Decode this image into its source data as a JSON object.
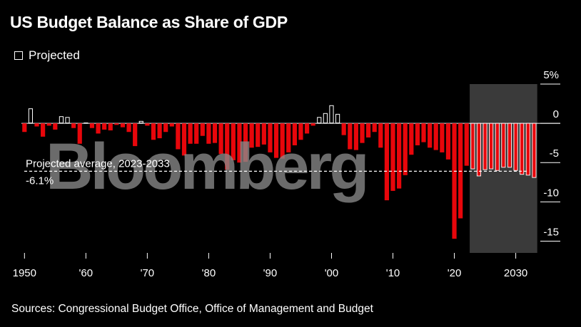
{
  "chart_data": {
    "type": "bar",
    "title": "US Budget Balance as Share of GDP",
    "legend": [
      {
        "label": "Projected",
        "style": "outline"
      }
    ],
    "source": "Sources: Congressional Budget Office, Office of Management and Budget",
    "watermark": "Bloomberg",
    "ylabel": "",
    "ylim": [
      -16.5,
      5
    ],
    "y_ticks": [
      {
        "value": 5,
        "label": "5%"
      },
      {
        "value": 0,
        "label": "0"
      },
      {
        "value": -5,
        "label": "-5"
      },
      {
        "value": -10,
        "label": "-10"
      },
      {
        "value": -15,
        "label": "-15"
      }
    ],
    "x_ticks": [
      {
        "value": 1950,
        "label": "1950"
      },
      {
        "value": 1960,
        "label": "'60"
      },
      {
        "value": 1970,
        "label": "'70"
      },
      {
        "value": 1980,
        "label": "'80"
      },
      {
        "value": 1990,
        "label": "'90"
      },
      {
        "value": 2000,
        "label": "'00"
      },
      {
        "value": 2010,
        "label": "'10"
      },
      {
        "value": 2020,
        "label": "'20"
      },
      {
        "value": 2030,
        "label": "2030"
      }
    ],
    "projection_start": 2023,
    "projection_end": 2033,
    "annotation": {
      "label": "Projected average, 2023-2033",
      "value_label": "-6.1%",
      "value": -6.1
    },
    "years": [
      1950,
      1951,
      1952,
      1953,
      1954,
      1955,
      1956,
      1957,
      1958,
      1959,
      1960,
      1961,
      1962,
      1963,
      1964,
      1965,
      1966,
      1967,
      1968,
      1969,
      1970,
      1971,
      1972,
      1973,
      1974,
      1975,
      1976,
      1977,
      1978,
      1979,
      1980,
      1981,
      1982,
      1983,
      1984,
      1985,
      1986,
      1987,
      1988,
      1989,
      1990,
      1991,
      1992,
      1993,
      1994,
      1995,
      1996,
      1997,
      1998,
      1999,
      2000,
      2001,
      2002,
      2003,
      2004,
      2005,
      2006,
      2007,
      2008,
      2009,
      2010,
      2011,
      2012,
      2013,
      2014,
      2015,
      2016,
      2017,
      2018,
      2019,
      2020,
      2021,
      2022,
      2023,
      2024,
      2025,
      2026,
      2027,
      2028,
      2029,
      2030,
      2031,
      2032,
      2033
    ],
    "values": [
      -1.1,
      1.9,
      -0.4,
      -1.7,
      -0.3,
      -0.8,
      0.9,
      0.8,
      -0.6,
      -2.6,
      0.1,
      -0.6,
      -1.3,
      -0.8,
      -0.9,
      -0.2,
      -0.5,
      -1.1,
      -2.9,
      0.3,
      -0.3,
      -2.1,
      -1.9,
      -1.1,
      -0.4,
      -3.3,
      -4.1,
      -2.6,
      -2.6,
      -1.6,
      -2.6,
      -2.5,
      -3.9,
      -5.9,
      -4.7,
      -5.0,
      -4.9,
      -3.1,
      -3.0,
      -2.7,
      -3.7,
      -4.4,
      -4.5,
      -3.7,
      -2.8,
      -2.1,
      -1.3,
      -0.3,
      0.8,
      1.3,
      2.3,
      1.2,
      -1.5,
      -3.3,
      -3.4,
      -2.5,
      -1.8,
      -1.1,
      -3.1,
      -9.8,
      -8.6,
      -8.3,
      -6.6,
      -4.0,
      -2.8,
      -2.4,
      -3.1,
      -3.4,
      -3.7,
      -4.6,
      -14.7,
      -12.1,
      -5.4,
      -5.8,
      -6.7,
      -5.9,
      -5.8,
      -6.0,
      -5.6,
      -5.6,
      -6.0,
      -6.5,
      -6.6,
      -6.9
    ]
  }
}
